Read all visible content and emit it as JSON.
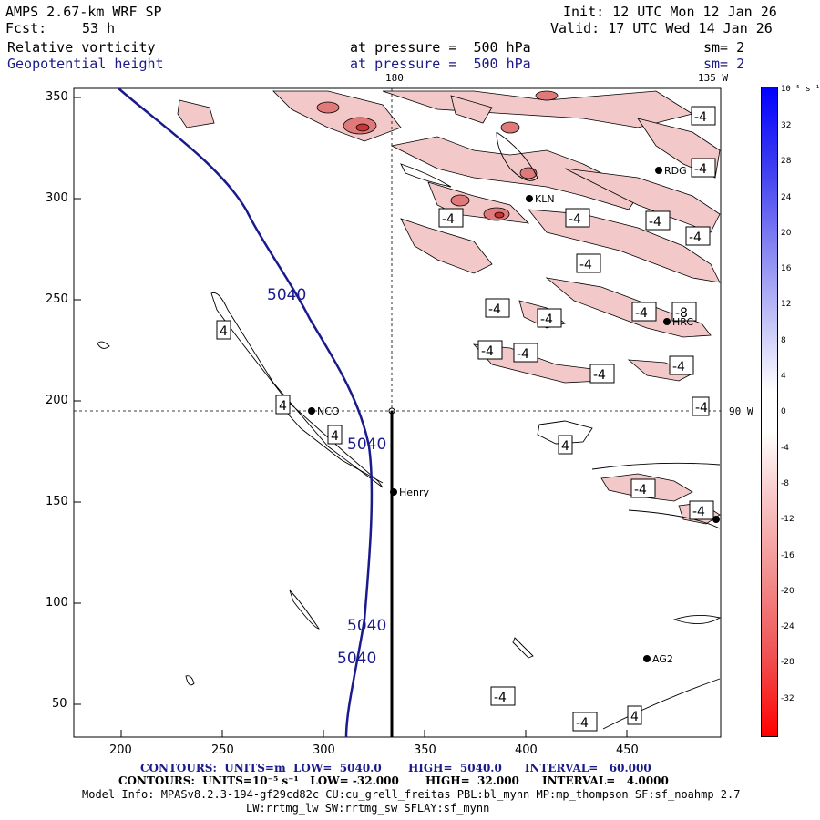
{
  "header": {
    "model": "AMPS 2.67-km WRF SP",
    "init": "Init: 12 UTC Mon 12 Jan 26",
    "fcst_label": "Fcst:",
    "fcst_value": "53 h",
    "valid": "Valid: 17 UTC Wed 14 Jan 26",
    "field1": "Relative vorticity",
    "field1_level": "at pressure =  500 hPa",
    "field1_sm": "sm= 2",
    "field2": "Geopotential height",
    "field2_level": "at pressure =  500 hPa",
    "field2_sm": "sm= 2"
  },
  "map": {
    "top_lon_labels": [
      "180",
      "135 W"
    ],
    "right_lat_label": "90 W",
    "x_ticks": [
      "200",
      "250",
      "300",
      "350",
      "400",
      "450"
    ],
    "y_ticks": [
      "350",
      "300",
      "250",
      "200",
      "150",
      "100",
      "50"
    ],
    "stations": [
      "NCO",
      "Henry",
      "KLN",
      "RDG",
      "HRC",
      "AG2"
    ],
    "height_labels": [
      "5040",
      "5040",
      "5040",
      "5040"
    ],
    "vorticity_labels": [
      "4",
      "4",
      "4",
      "4",
      "4",
      "-4",
      "-4",
      "-4",
      "-4",
      "-4",
      "-4",
      "-4",
      "-4",
      "-4",
      "-4",
      "-4",
      "-4",
      "-4",
      "-4",
      "-4",
      "-4",
      "-4",
      "-4",
      "-4",
      "-8"
    ],
    "colors": {
      "height_contour": "#1a1a8c",
      "positive_shading": "#f2c4c4",
      "frame": "#000000"
    }
  },
  "colorbar": {
    "unit": "10⁻⁵ s⁻¹",
    "ticks": [
      "32",
      "28",
      "24",
      "20",
      "16",
      "12",
      "8",
      "4",
      "0",
      "-4",
      "-8",
      "-12",
      "-16",
      "-20",
      "-24",
      "-28",
      "-32"
    ]
  },
  "footer": {
    "contours1": "CONTOURS:  UNITS=m  LOW=  5040.0       HIGH=  5040.0      INTERVAL=   60.000",
    "contours2": "CONTOURS:  UNITS=10⁻⁵ s⁻¹   LOW= -32.000       HIGH=  32.000      INTERVAL=   4.0000",
    "model_info": "Model Info: MPASv8.2.3-194-gf29cd82c CU:cu_grell_freitas PBL:bl_mynn MP:mp_thompson SF:sf_noahmp 2.7",
    "model_info2": "LW:rrtmg_lw SW:rrtmg_sw SFLAY:sf_mynn"
  }
}
